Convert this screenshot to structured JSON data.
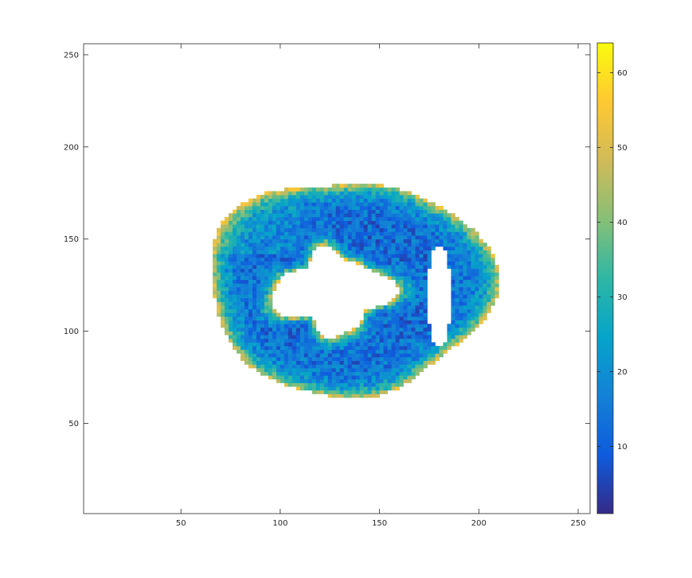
{
  "chart_data": {
    "type": "heatmap",
    "title": "",
    "xlabel": "",
    "ylabel": "",
    "xlim": [
      1,
      256
    ],
    "ylim": [
      1,
      256
    ],
    "xticks": [
      50,
      100,
      150,
      200,
      250
    ],
    "xtick_labels": [
      "50",
      "100",
      "150",
      "200",
      "250"
    ],
    "yticks": [
      50,
      100,
      150,
      200,
      250
    ],
    "ytick_labels": [
      "50",
      "100",
      "150",
      "200",
      "250"
    ],
    "grid": false,
    "colormap": "parula",
    "colormap_stops": [
      "#352a87",
      "#0f5cdd",
      "#1481d6",
      "#06a4ca",
      "#2eb7a4",
      "#87bf77",
      "#d1bb59",
      "#fec832",
      "#f9fb0e"
    ],
    "clim": [
      1,
      64
    ],
    "colorbar": {
      "location": "right",
      "ticks": [
        10,
        20,
        30,
        40,
        50,
        60
      ],
      "tick_labels": [
        "10",
        "20",
        "30",
        "40",
        "50",
        "60"
      ]
    },
    "regions": {
      "outer_ring_center": [
        133,
        123
      ],
      "outer_ring_radii": [
        72,
        58
      ],
      "inner_cavity_center": [
        125,
        120
      ],
      "inner_cavity_radii": [
        27,
        21
      ],
      "slit_cavity_center": [
        179,
        118
      ],
      "slit_cavity_radii": [
        6,
        28
      ]
    },
    "value_summary": {
      "background": "NaN (white)",
      "wall_interior_typical": [
        5,
        18
      ],
      "wall_edge_typical": [
        35,
        50
      ],
      "max_observed": 55
    }
  }
}
